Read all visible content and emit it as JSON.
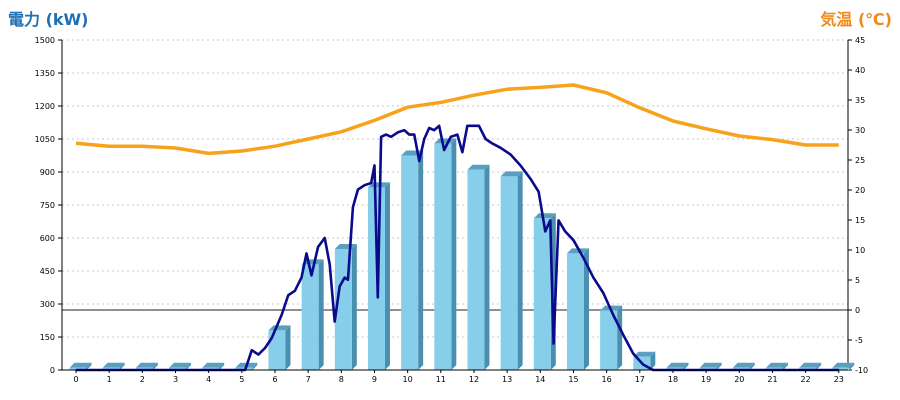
{
  "chart_data": {
    "type": "bar+line",
    "left_axis_title": "電力 (kW)",
    "right_axis_title": "気温 (℃)",
    "left_ylim": [
      0,
      1500
    ],
    "left_ticks": [
      0,
      150,
      300,
      450,
      600,
      750,
      900,
      1050,
      1200,
      1350,
      1500
    ],
    "right_ylim": [
      -10,
      45
    ],
    "right_ticks": [
      -10,
      -5,
      0,
      5,
      10,
      15,
      20,
      25,
      30,
      35,
      40,
      45
    ],
    "categories": [
      "0",
      "1",
      "2",
      "3",
      "4",
      "5",
      "6",
      "7",
      "8",
      "9",
      "10",
      "11",
      "12",
      "13",
      "14",
      "15",
      "16",
      "17",
      "18",
      "19",
      "20",
      "21",
      "22",
      "23"
    ],
    "grid": true,
    "bars": {
      "axis": "left",
      "color": "#87ceeb",
      "values": [
        10,
        10,
        10,
        10,
        10,
        10,
        180,
        480,
        550,
        830,
        975,
        1030,
        910,
        880,
        690,
        530,
        270,
        60,
        10,
        10,
        10,
        10,
        10,
        10
      ]
    },
    "power_line": {
      "axis": "left",
      "color": "#0a0a8c",
      "x": [
        0,
        1,
        2,
        3,
        4,
        4.9,
        5.1,
        5.3,
        5.5,
        5.7,
        5.9,
        6.0,
        6.2,
        6.4,
        6.6,
        6.8,
        6.95,
        7.1,
        7.3,
        7.5,
        7.65,
        7.8,
        7.95,
        8.1,
        8.2,
        8.35,
        8.5,
        8.7,
        8.9,
        9.0,
        9.1,
        9.2,
        9.35,
        9.5,
        9.7,
        9.9,
        10.05,
        10.2,
        10.35,
        10.5,
        10.65,
        10.8,
        10.95,
        11.1,
        11.3,
        11.5,
        11.65,
        11.8,
        12.0,
        12.15,
        12.35,
        12.55,
        12.8,
        13.1,
        13.4,
        13.7,
        13.95,
        14.15,
        14.3,
        14.4,
        14.55,
        14.75,
        15.0,
        15.3,
        15.6,
        15.9,
        16.2,
        16.5,
        16.8,
        17.1,
        17.4,
        18,
        19,
        20,
        21,
        22,
        23
      ],
      "y": [
        0,
        0,
        0,
        0,
        0,
        0,
        0,
        90,
        70,
        100,
        145,
        180,
        250,
        340,
        360,
        420,
        530,
        430,
        560,
        600,
        480,
        220,
        380,
        420,
        410,
        740,
        820,
        840,
        850,
        930,
        330,
        1060,
        1070,
        1060,
        1080,
        1090,
        1070,
        1070,
        950,
        1050,
        1100,
        1090,
        1110,
        1000,
        1060,
        1070,
        990,
        1110,
        1110,
        1110,
        1050,
        1030,
        1010,
        980,
        930,
        870,
        810,
        630,
        680,
        120,
        680,
        630,
        590,
        510,
        420,
        350,
        250,
        160,
        75,
        25,
        0,
        0,
        0,
        0,
        0,
        0,
        0
      ]
    },
    "temperature_line": {
      "axis": "right",
      "color": "#f7a21b",
      "values": [
        27.8,
        27.3,
        27.3,
        27.0,
        26.1,
        26.5,
        27.3,
        28.5,
        29.7,
        31.6,
        33.8,
        34.6,
        35.8,
        36.8,
        37.1,
        37.5,
        36.2,
        33.7,
        31.5,
        30.2,
        29.0,
        28.4,
        27.5,
        27.5
      ]
    }
  }
}
